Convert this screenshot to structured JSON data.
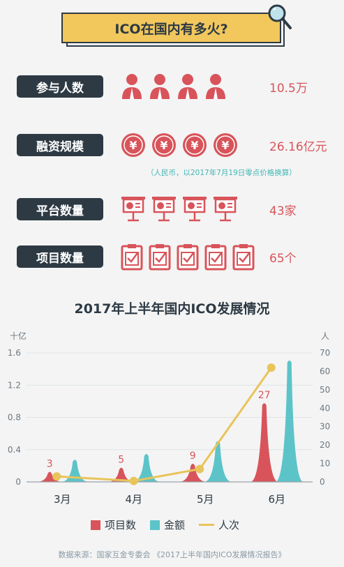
{
  "header": {
    "title": "ICO在国内有多火?"
  },
  "stats": [
    {
      "label": "参与人数",
      "value": "10.5万",
      "icon": "person-icon",
      "count": 4
    },
    {
      "label": "融资规模",
      "value": "26.16亿元",
      "icon": "yuan-coin-icon",
      "count": 4
    },
    {
      "label": "平台数量",
      "value": "43家",
      "icon": "presentation-board-icon",
      "count": 4
    },
    {
      "label": "项目数量",
      "value": "65个",
      "icon": "clipboard-check-icon",
      "count": 5
    }
  ],
  "note": "（人民币，以2017年7月19日零点价格换算）",
  "colors": {
    "dark": "#2d3a44",
    "red": "#d8545a",
    "teal": "#5cc4c8",
    "yellow": "#e8c45a",
    "banner": "#f2c75c"
  },
  "chart_data": {
    "type": "bar",
    "title": "2017年上半年国内ICO发展情况",
    "categories": [
      "3月",
      "4月",
      "5月",
      "6月"
    ],
    "left_axis": {
      "unit": "十亿",
      "ticks": [
        "0",
        "0.4",
        "0.8",
        "1.2",
        "1.6"
      ],
      "ylim": [
        0,
        1.6
      ]
    },
    "right_axis": {
      "unit": "人",
      "ticks": [
        "0",
        "10",
        "20",
        "30",
        "40",
        "50",
        "60",
        "70"
      ],
      "ylim": [
        0,
        70
      ]
    },
    "series": [
      {
        "name": "项目数",
        "axis": "left",
        "values": [
          0.1,
          0.15,
          0.2,
          0.95
        ],
        "labels": [
          "3",
          "5",
          "9",
          "27"
        ]
      },
      {
        "name": "金额",
        "axis": "left",
        "values": [
          0.25,
          0.32,
          0.48,
          1.48
        ]
      },
      {
        "name": "人次",
        "axis": "right",
        "values": [
          3,
          0.5,
          7,
          62
        ]
      }
    ]
  },
  "source": "数据来源：国家互金专委会 《2017上半年国内ICO发展情况报告》"
}
